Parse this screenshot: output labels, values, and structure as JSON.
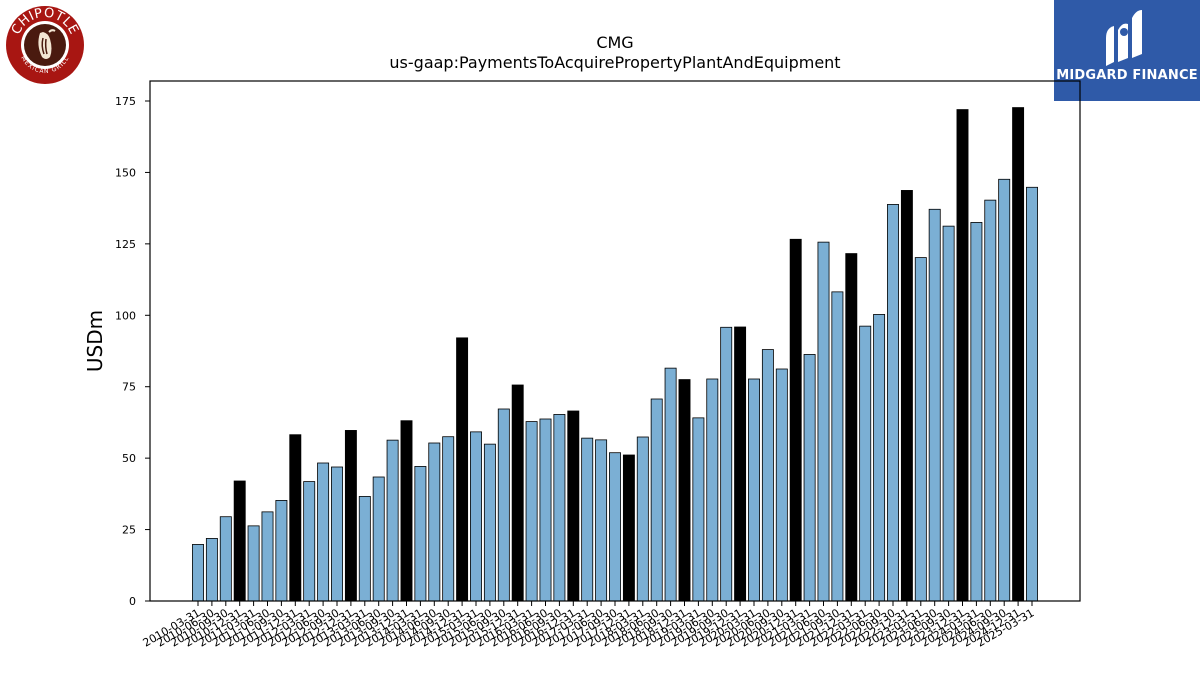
{
  "chart_data": {
    "type": "bar",
    "title": "CMG",
    "subtitle": "us-gaap:PaymentsToAcquirePropertyPlantAndEquipment",
    "ylabel": "USDm",
    "xlabel": "",
    "ylim": [
      0,
      182
    ],
    "yticks": [
      0,
      25,
      50,
      75,
      100,
      125,
      150,
      175
    ],
    "categories": [
      "2010-03-31",
      "2010-06-30",
      "2010-09-30",
      "2010-12-31",
      "2011-03-31",
      "2011-06-30",
      "2011-09-30",
      "2011-12-31",
      "2012-03-31",
      "2012-06-30",
      "2012-09-30",
      "2012-12-31",
      "2013-03-31",
      "2013-06-30",
      "2013-09-30",
      "2013-12-31",
      "2014-03-31",
      "2014-06-30",
      "2014-09-30",
      "2014-12-31",
      "2015-03-31",
      "2015-06-30",
      "2015-09-30",
      "2015-12-31",
      "2016-03-31",
      "2016-06-30",
      "2016-09-30",
      "2016-12-31",
      "2017-03-31",
      "2017-06-30",
      "2017-09-30",
      "2017-12-31",
      "2018-03-31",
      "2018-06-30",
      "2018-09-30",
      "2018-12-31",
      "2019-03-31",
      "2019-06-30",
      "2019-09-30",
      "2019-12-31",
      "2020-03-31",
      "2020-06-30",
      "2020-09-30",
      "2020-12-31",
      "2021-03-31",
      "2021-06-30",
      "2021-09-30",
      "2021-12-31",
      "2022-03-31",
      "2022-06-30",
      "2022-09-30",
      "2022-12-31",
      "2023-03-31",
      "2023-06-30",
      "2023-09-30",
      "2023-12-31",
      "2024-03-31",
      "2024-06-30",
      "2024-09-30",
      "2024-12-31",
      "2025-03-31"
    ],
    "values": [
      19.8,
      21.9,
      29.5,
      42.0,
      26.3,
      31.2,
      35.2,
      58.2,
      41.8,
      48.3,
      46.9,
      59.7,
      36.6,
      43.4,
      56.3,
      63.1,
      47.1,
      55.3,
      57.5,
      92.1,
      59.2,
      54.9,
      67.2,
      75.6,
      62.8,
      63.7,
      65.3,
      66.5,
      57.0,
      56.4,
      51.9,
      51.1,
      57.4,
      70.7,
      81.5,
      77.5,
      64.1,
      77.7,
      95.8,
      95.9,
      77.7,
      88.0,
      81.2,
      126.6,
      86.3,
      125.6,
      108.2,
      121.6,
      96.2,
      100.3,
      138.8,
      143.7,
      120.2,
      137.1,
      131.2,
      172.0,
      132.5,
      140.3,
      147.6,
      172.7,
      144.8
    ],
    "highlight_color": "#000000",
    "bar_color": "#7bafd4",
    "grid": false,
    "legend": "none"
  },
  "logos": {
    "left": {
      "name": "chipotle-logo",
      "text_top": "CHIPOTLE",
      "text_bottom": "MEXICAN GRILL",
      "color": "#a81612"
    },
    "right": {
      "name": "midgard-finance-logo",
      "text": "MIDGARD FINANCE",
      "color": "#2f5aa8"
    }
  }
}
